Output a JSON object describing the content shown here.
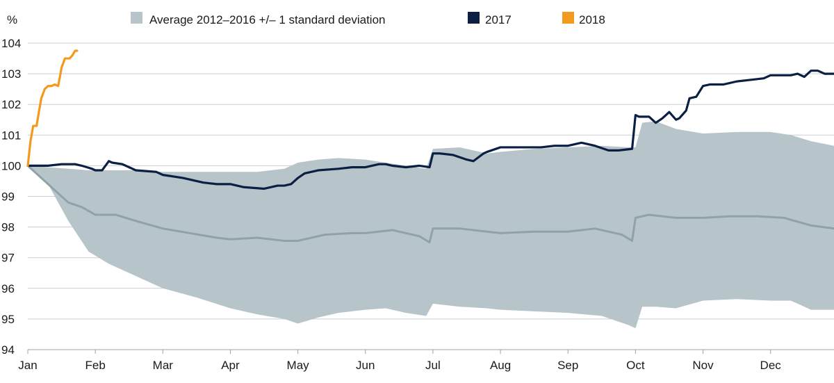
{
  "chart_data": {
    "type": "line",
    "ylabel": "%",
    "ylim": [
      94,
      104
    ],
    "xlim": [
      0,
      11.94
    ],
    "yticks": [
      94,
      95,
      96,
      97,
      98,
      99,
      100,
      101,
      102,
      103,
      104
    ],
    "xticks": [
      "Jan",
      "Feb",
      "Mar",
      "Apr",
      "May",
      "Jun",
      "Jul",
      "Aug",
      "Sep",
      "Oct",
      "Nov",
      "Dec"
    ],
    "grid": "horizontal",
    "legend": {
      "position": "top",
      "items": [
        {
          "label": "Average 2012–2016 +/– 1 standard deviation",
          "color": "#b7c4ca",
          "kind": "band"
        },
        {
          "label": "2017",
          "color": "#0b1f44",
          "kind": "line"
        },
        {
          "label": "2018",
          "color": "#f39a1e",
          "kind": "line"
        }
      ]
    },
    "x_units": "months from start of January (0 = Jan 1, 1 = Feb 1, ...)",
    "series": [
      {
        "name": "Average 2012–2016 +/– 1 standard deviation",
        "kind": "band",
        "color": "#b7c4ca",
        "x": [
          0,
          0.3,
          0.6,
          0.9,
          1.2,
          1.6,
          2,
          2.5,
          3,
          3.4,
          3.8,
          4,
          4.3,
          4.6,
          5,
          5.3,
          5.6,
          5.9,
          6,
          6.4,
          6.8,
          7,
          7.5,
          8,
          8.5,
          8.9,
          9,
          9.1,
          9.3,
          9.6,
          10,
          10.5,
          11,
          11.3,
          11.6,
          11.94
        ],
        "upper": [
          100,
          99.95,
          99.9,
          99.85,
          99.85,
          99.85,
          99.8,
          99.8,
          99.8,
          99.8,
          99.9,
          100.1,
          100.2,
          100.25,
          100.2,
          100.1,
          100.0,
          99.9,
          100.55,
          100.6,
          100.4,
          100.45,
          100.55,
          100.6,
          100.65,
          100.6,
          100.6,
          101.4,
          101.45,
          101.2,
          101.05,
          101.1,
          101.1,
          101.0,
          100.8,
          100.65
        ],
        "lower": [
          100,
          99.4,
          98.2,
          97.2,
          96.8,
          96.4,
          96.0,
          95.7,
          95.35,
          95.15,
          95.0,
          94.85,
          95.05,
          95.2,
          95.3,
          95.35,
          95.2,
          95.1,
          95.5,
          95.4,
          95.35,
          95.3,
          95.25,
          95.2,
          95.1,
          94.8,
          94.7,
          95.4,
          95.4,
          95.35,
          95.6,
          95.65,
          95.6,
          95.6,
          95.3,
          95.3
        ]
      },
      {
        "name": "Average 2012–2016",
        "kind": "mean-line",
        "color": "#8fa2aa",
        "x": [
          0,
          0.2,
          0.4,
          0.6,
          0.8,
          1.0,
          1.3,
          1.6,
          2.0,
          2.4,
          2.8,
          3.0,
          3.4,
          3.8,
          4.0,
          4.4,
          4.8,
          5.0,
          5.4,
          5.8,
          5.95,
          6.0,
          6.4,
          6.8,
          7.0,
          7.5,
          8.0,
          8.4,
          8.8,
          8.95,
          9.0,
          9.2,
          9.6,
          10.0,
          10.4,
          10.8,
          11.2,
          11.6,
          11.94
        ],
        "y": [
          100,
          99.6,
          99.2,
          98.8,
          98.65,
          98.4,
          98.4,
          98.2,
          97.95,
          97.8,
          97.65,
          97.6,
          97.65,
          97.55,
          97.55,
          97.75,
          97.8,
          97.8,
          97.9,
          97.7,
          97.5,
          97.95,
          97.95,
          97.85,
          97.8,
          97.85,
          97.85,
          97.95,
          97.75,
          97.55,
          98.3,
          98.4,
          98.3,
          98.3,
          98.35,
          98.35,
          98.3,
          98.05,
          97.95
        ]
      },
      {
        "name": "2017",
        "kind": "line",
        "color": "#0b1f44",
        "x": [
          0,
          0.3,
          0.5,
          0.7,
          0.8,
          0.95,
          1.0,
          1.1,
          1.2,
          1.25,
          1.4,
          1.6,
          1.9,
          2.0,
          2.3,
          2.6,
          2.8,
          3.0,
          3.2,
          3.5,
          3.7,
          3.8,
          3.9,
          4.0,
          4.1,
          4.3,
          4.6,
          4.8,
          5.0,
          5.2,
          5.3,
          5.4,
          5.6,
          5.8,
          5.95,
          6.0,
          6.1,
          6.3,
          6.5,
          6.6,
          6.75,
          6.8,
          7.0,
          7.2,
          7.4,
          7.6,
          7.8,
          8.0,
          8.2,
          8.4,
          8.6,
          8.75,
          8.95,
          9.0,
          9.05,
          9.1,
          9.2,
          9.3,
          9.4,
          9.5,
          9.6,
          9.65,
          9.75,
          9.8,
          9.9,
          10.0,
          10.1,
          10.3,
          10.5,
          10.7,
          10.9,
          11.0,
          11.1,
          11.3,
          11.4,
          11.5,
          11.6,
          11.7,
          11.8,
          11.94
        ],
        "y": [
          100,
          100.0,
          100.05,
          100.05,
          100.0,
          99.9,
          99.85,
          99.85,
          100.15,
          100.1,
          100.05,
          99.85,
          99.8,
          99.7,
          99.6,
          99.45,
          99.4,
          99.4,
          99.3,
          99.25,
          99.35,
          99.35,
          99.4,
          99.6,
          99.75,
          99.85,
          99.9,
          99.95,
          99.95,
          100.05,
          100.05,
          100.0,
          99.95,
          100.0,
          99.95,
          100.4,
          100.4,
          100.35,
          100.2,
          100.15,
          100.4,
          100.45,
          100.6,
          100.6,
          100.6,
          100.6,
          100.65,
          100.65,
          100.75,
          100.65,
          100.5,
          100.5,
          100.55,
          101.65,
          101.6,
          101.6,
          101.6,
          101.4,
          101.55,
          101.75,
          101.5,
          101.55,
          101.8,
          102.2,
          102.25,
          102.6,
          102.65,
          102.65,
          102.75,
          102.8,
          102.85,
          102.95,
          102.95,
          102.95,
          103.0,
          102.9,
          103.1,
          103.1,
          103.0,
          103.0
        ]
      },
      {
        "name": "2018",
        "kind": "line",
        "color": "#f39a1e",
        "x": [
          0,
          0.04,
          0.08,
          0.13,
          0.16,
          0.2,
          0.25,
          0.3,
          0.35,
          0.4,
          0.45,
          0.5,
          0.55,
          0.58,
          0.62,
          0.66,
          0.7,
          0.73
        ],
        "y": [
          100,
          100.8,
          101.3,
          101.3,
          101.7,
          102.2,
          102.5,
          102.6,
          102.6,
          102.65,
          102.6,
          103.2,
          103.5,
          103.5,
          103.5,
          103.6,
          103.75,
          103.75
        ]
      }
    ]
  }
}
